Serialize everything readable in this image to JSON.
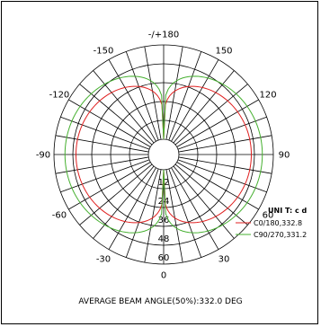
{
  "chart_data": {
    "type": "polar",
    "angle_labels": [
      {
        "angle": 180,
        "text": "-/+180"
      },
      {
        "angle": 150,
        "text": "150"
      },
      {
        "angle": -150,
        "text": "-150"
      },
      {
        "angle": 120,
        "text": "120"
      },
      {
        "angle": -120,
        "text": "-120"
      },
      {
        "angle": 90,
        "text": "90"
      },
      {
        "angle": -90,
        "text": "-90"
      },
      {
        "angle": 60,
        "text": "60"
      },
      {
        "angle": -60,
        "text": "-60"
      },
      {
        "angle": 30,
        "text": "30"
      },
      {
        "angle": -30,
        "text": "-30"
      },
      {
        "angle": 0,
        "text": "0"
      }
    ],
    "radial_ticks": [
      12,
      24,
      36,
      48,
      60
    ],
    "r_max": 60,
    "unit_label": "UNI T: c d",
    "series": [
      {
        "name": "C0/180,332.8",
        "color": "#e02020",
        "max": 46,
        "shape_exponent": 0.22
      },
      {
        "name": "C90/270,331.2",
        "color": "#46b030",
        "max": 53,
        "shape_exponent": 0.19
      }
    ]
  },
  "caption": "AVERAGE BEAM ANGLE(50%):332.0 DEG"
}
